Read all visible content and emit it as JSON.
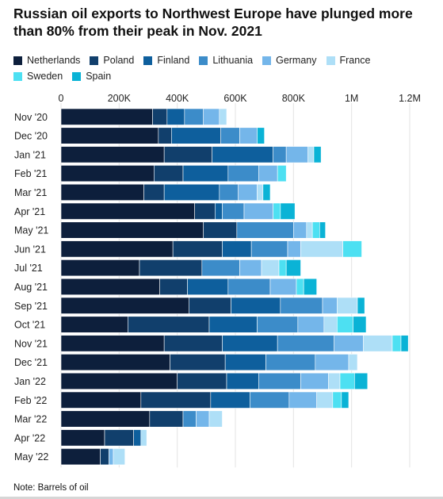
{
  "title": "Russian oil exports to Northwest Europe have plunged more than 80% from their peak in Nov. 2021",
  "note": "Note: Barrels of oil",
  "chart_data": {
    "type": "bar",
    "orientation": "horizontal",
    "stacked": true,
    "xlim": [
      0,
      1200000
    ],
    "x_ticks": [
      0,
      200000,
      400000,
      600000,
      800000,
      1000000,
      1200000
    ],
    "x_tick_labels": [
      "0",
      "200K",
      "400K",
      "600K",
      "800K",
      "1M",
      "1.2M"
    ],
    "x_axis_position": "top",
    "grid": true,
    "legend_position": "top",
    "categories": [
      "Nov '20",
      "Dec '20",
      "Jan '21",
      "Feb '21",
      "Mar '21",
      "Apr '21",
      "May '21",
      "Jun '21",
      "Jul '21",
      "Aug '21",
      "Sep '21",
      "Oct '21",
      "Nov '21",
      "Dec '21",
      "Jan '22",
      "Feb '22",
      "Mar '22",
      "Apr '22",
      "May '22"
    ],
    "series": [
      {
        "name": "Netherlands",
        "color": "#0d1f3c",
        "values": [
          315000,
          335000,
          355000,
          320000,
          285000,
          460000,
          490000,
          385000,
          270000,
          340000,
          440000,
          230000,
          355000,
          375000,
          400000,
          275000,
          305000,
          150000,
          135000
        ]
      },
      {
        "name": "Poland",
        "color": "#113f6c",
        "values": [
          50000,
          45000,
          165000,
          100000,
          70000,
          70000,
          115000,
          170000,
          215000,
          95000,
          145000,
          280000,
          200000,
          190000,
          170000,
          240000,
          115000,
          100000,
          30000
        ]
      },
      {
        "name": "Finland",
        "color": "#0e5f9d",
        "values": [
          60000,
          170000,
          210000,
          155000,
          190000,
          25000,
          0,
          100000,
          0,
          140000,
          170000,
          165000,
          190000,
          140000,
          110000,
          135000,
          0,
          25000,
          0
        ]
      },
      {
        "name": "Lithuania",
        "color": "#3c8cc9",
        "values": [
          65000,
          65000,
          45000,
          105000,
          65000,
          75000,
          195000,
          125000,
          130000,
          145000,
          145000,
          140000,
          195000,
          170000,
          145000,
          135000,
          45000,
          0,
          0
        ]
      },
      {
        "name": "Germany",
        "color": "#74b6ea",
        "values": [
          55000,
          60000,
          75000,
          65000,
          65000,
          100000,
          45000,
          45000,
          75000,
          90000,
          50000,
          90000,
          100000,
          115000,
          95000,
          95000,
          45000,
          0,
          15000
        ]
      },
      {
        "name": "France",
        "color": "#aedff7",
        "values": [
          25000,
          0,
          20000,
          0,
          20000,
          0,
          20000,
          145000,
          60000,
          0,
          70000,
          45000,
          100000,
          30000,
          40000,
          55000,
          45000,
          20000,
          40000
        ]
      },
      {
        "name": "Sweden",
        "color": "#4de0f2",
        "values": [
          0,
          0,
          0,
          30000,
          0,
          25000,
          25000,
          65000,
          25000,
          25000,
          0,
          55000,
          30000,
          0,
          50000,
          30000,
          0,
          0,
          0
        ]
      },
      {
        "name": "Spain",
        "color": "#0ab3d6",
        "values": [
          0,
          25000,
          25000,
          0,
          25000,
          50000,
          20000,
          0,
          50000,
          45000,
          25000,
          45000,
          25000,
          0,
          45000,
          25000,
          0,
          0,
          0
        ]
      }
    ]
  }
}
